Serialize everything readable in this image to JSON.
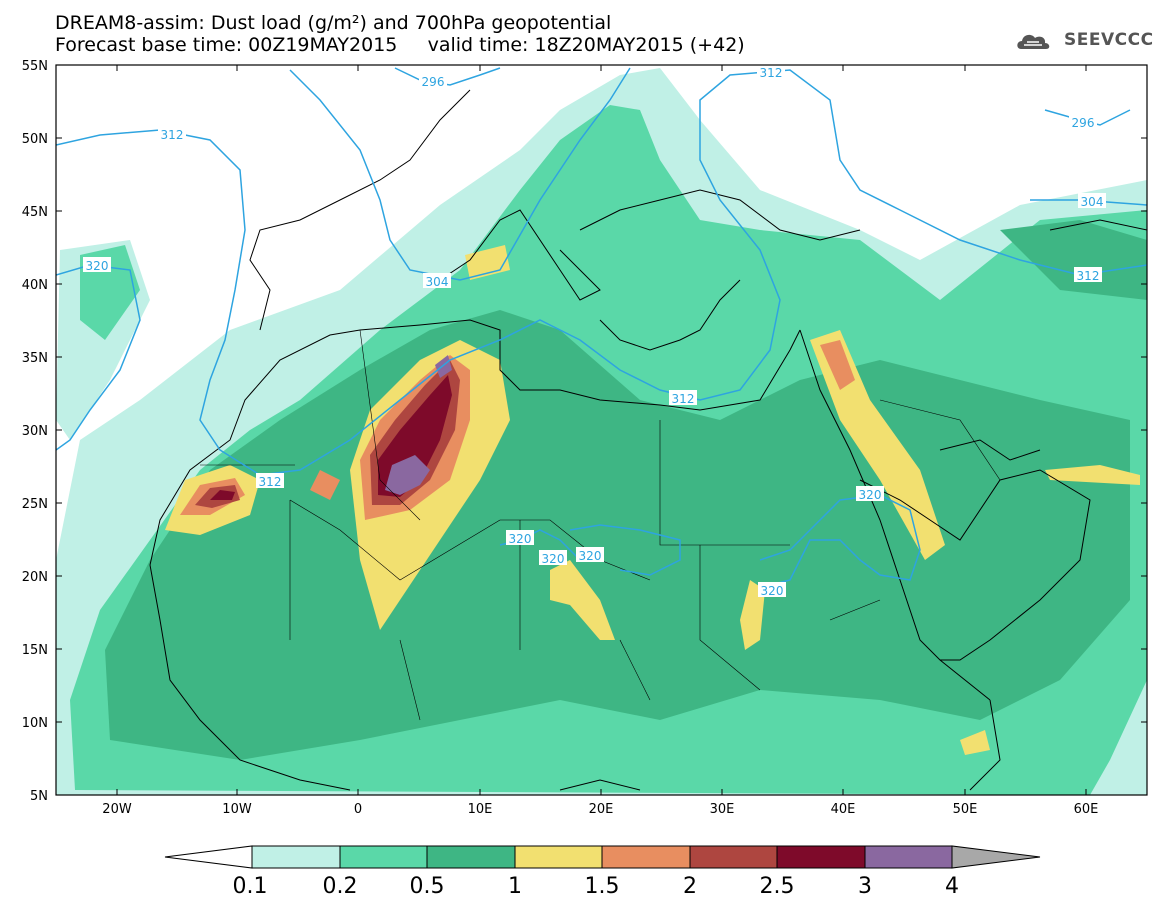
{
  "header": {
    "line1": "DREAM8-assim: Dust load (g/m²) and 700hPa geopotential",
    "line2": "Forecast base time: 00Z19MAY2015     valid time: 18Z20MAY2015 (+42)"
  },
  "logo": {
    "text": "SEEVCCC",
    "icon": "cloud-icon"
  },
  "axes": {
    "lat_labels": [
      "55N",
      "50N",
      "45N",
      "40N",
      "35N",
      "30N",
      "25N",
      "20N",
      "15N",
      "10N",
      "5N"
    ],
    "lon_labels": [
      "20W",
      "10W",
      "0",
      "10E",
      "20E",
      "30E",
      "40E",
      "50E",
      "60E"
    ]
  },
  "contour_labels": [
    "296",
    "312",
    "296",
    "312",
    "320",
    "304",
    "312",
    "304",
    "312",
    "312",
    "320",
    "320",
    "320",
    "320",
    "320"
  ],
  "colorbar": {
    "ticks": [
      "0.1",
      "0.2",
      "0.5",
      "1",
      "1.5",
      "2",
      "2.5",
      "3",
      "4"
    ],
    "colors": [
      "#c0f0e6",
      "#5ad8a8",
      "#3eb684",
      "#f2e070",
      "#e88e60",
      "#ae4640",
      "#7e0a2a",
      "#8a68a0",
      "#a8a8a8"
    ]
  },
  "colors": {
    "contour": "#2ea4e0",
    "land_low": "#3eb684",
    "dust_mid": "#f2e070"
  }
}
